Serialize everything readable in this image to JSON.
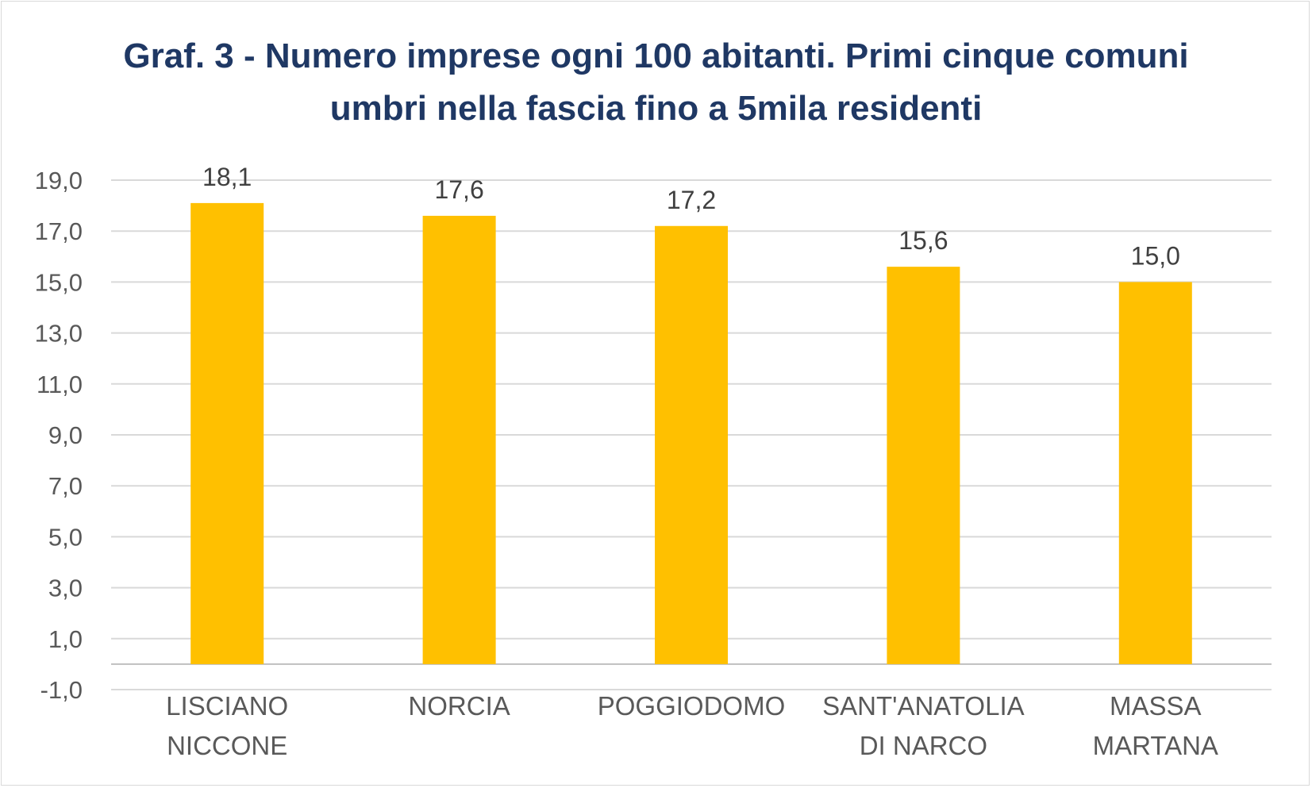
{
  "chart_data": {
    "type": "bar",
    "title": "Graf. 3 - Numero imprese ogni 100 abitanti. Primi cinque comuni umbri nella fascia fino a 5mila residenti",
    "categories": [
      [
        "LISCIANO",
        "NICCONE"
      ],
      [
        "NORCIA"
      ],
      [
        "POGGIODOMO"
      ],
      [
        "SANT'ANATOLIA",
        "DI NARCO"
      ],
      [
        "MASSA",
        "MARTANA"
      ]
    ],
    "values": [
      18.1,
      17.6,
      17.2,
      15.6,
      15.0
    ],
    "data_labels": [
      "18,1",
      "17,6",
      "17,2",
      "15,6",
      "15,0"
    ],
    "ylim": [
      -1,
      19
    ],
    "yticks": [
      19,
      17,
      15,
      13,
      11,
      9,
      7,
      5,
      3,
      1,
      -1
    ],
    "ytick_labels": [
      "19,0",
      "17,0",
      "15,0",
      "13,0",
      "11,0",
      "9,0",
      "7,0",
      "5,0",
      "3,0",
      "1,0",
      "-1,0"
    ],
    "xlabel": "",
    "ylabel": "",
    "grid": true,
    "bar_color": "#ffc000",
    "grid_color": "#d9d9d9",
    "title_color": "#1f3864"
  }
}
